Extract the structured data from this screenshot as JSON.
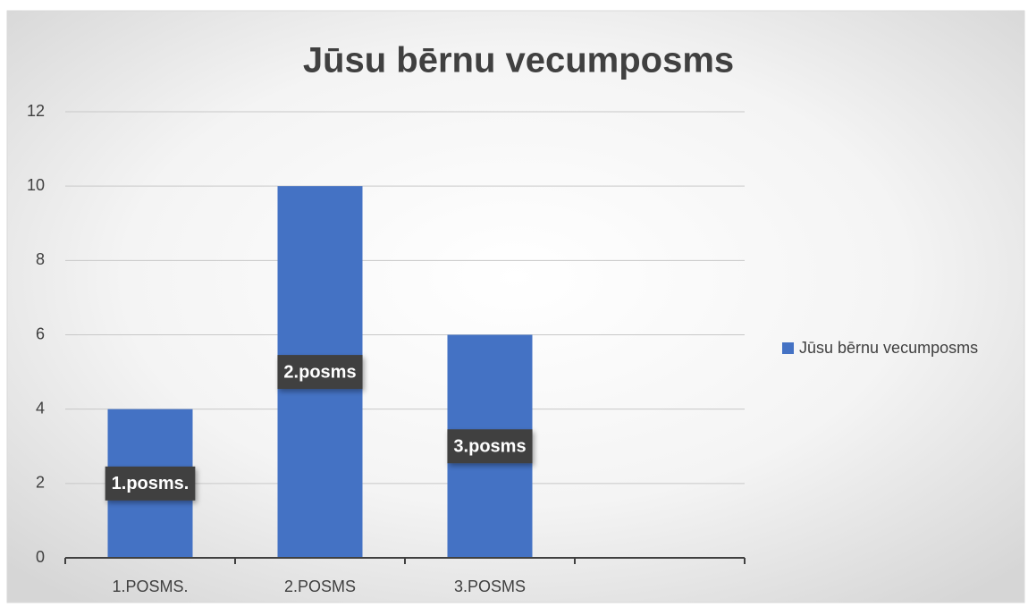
{
  "chart_data": {
    "type": "bar",
    "title": "Jūsu bērnu vecumposms",
    "categories": [
      "1.POSMS.",
      "2.POSMS",
      "3.POSMS",
      null
    ],
    "series": [
      {
        "name": "Jūsu bērnu vecumposms",
        "color": "#4472c4",
        "values": [
          4,
          10,
          6,
          null
        ]
      }
    ],
    "data_labels": [
      "1.posms.",
      "2.posms",
      "3.posms",
      null
    ],
    "ylim": [
      0,
      12
    ],
    "yticks": [
      0,
      2,
      4,
      6,
      8,
      10,
      12
    ],
    "grid": true,
    "legend": "right"
  }
}
